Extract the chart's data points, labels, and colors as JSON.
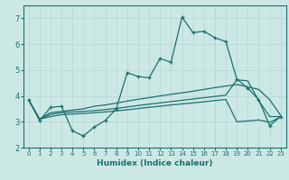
{
  "xlabel": "Humidex (Indice chaleur)",
  "xlim": [
    -0.5,
    23.5
  ],
  "ylim": [
    2,
    7.5
  ],
  "yticks": [
    2,
    3,
    4,
    5,
    6,
    7
  ],
  "xticks": [
    0,
    1,
    2,
    3,
    4,
    5,
    6,
    7,
    8,
    9,
    10,
    11,
    12,
    13,
    14,
    15,
    16,
    17,
    18,
    19,
    20,
    21,
    22,
    23
  ],
  "bg_color": "#cce8e4",
  "line_color": "#1a7070",
  "grid_color": "#b8d8d4",
  "s1_x": [
    0,
    1,
    2,
    3,
    4,
    5,
    6,
    7,
    8,
    9,
    10,
    11,
    12,
    13,
    14,
    15,
    16,
    17,
    18,
    19,
    20,
    21,
    22,
    23
  ],
  "s1_y": [
    3.85,
    3.05,
    3.55,
    3.6,
    2.65,
    2.45,
    2.8,
    3.05,
    3.5,
    4.9,
    4.75,
    4.7,
    5.45,
    5.3,
    7.05,
    6.45,
    6.5,
    6.25,
    6.1,
    4.65,
    4.3,
    3.85,
    2.85,
    3.2
  ],
  "s2_x": [
    0,
    1,
    2,
    3,
    4,
    5,
    6,
    7,
    8,
    9,
    10,
    11,
    12,
    13,
    14,
    15,
    16,
    17,
    18,
    19,
    20,
    21,
    22,
    23
  ],
  "s2_y": [
    3.85,
    3.1,
    3.35,
    3.4,
    3.45,
    3.5,
    3.6,
    3.65,
    3.72,
    3.8,
    3.87,
    3.93,
    4.0,
    4.06,
    4.12,
    4.18,
    4.25,
    4.32,
    4.38,
    4.44,
    4.35,
    4.25,
    3.85,
    3.25
  ],
  "s3_x": [
    0,
    1,
    2,
    3,
    4,
    5,
    6,
    7,
    8,
    9,
    10,
    11,
    12,
    13,
    14,
    15,
    16,
    17,
    18,
    19,
    20,
    21,
    22,
    23
  ],
  "s3_y": [
    3.85,
    3.1,
    3.28,
    3.35,
    3.38,
    3.4,
    3.43,
    3.47,
    3.52,
    3.57,
    3.63,
    3.68,
    3.73,
    3.78,
    3.83,
    3.88,
    3.93,
    3.98,
    4.03,
    4.62,
    4.58,
    3.82,
    3.2,
    3.2
  ],
  "s4_x": [
    0,
    1,
    2,
    3,
    4,
    5,
    6,
    7,
    8,
    9,
    10,
    11,
    12,
    13,
    14,
    15,
    16,
    17,
    18,
    19,
    20,
    21,
    22,
    23
  ],
  "s4_y": [
    3.85,
    3.1,
    3.2,
    3.27,
    3.3,
    3.32,
    3.35,
    3.38,
    3.42,
    3.46,
    3.51,
    3.56,
    3.6,
    3.65,
    3.69,
    3.73,
    3.77,
    3.82,
    3.86,
    3.0,
    3.03,
    3.07,
    2.98,
    3.18
  ]
}
